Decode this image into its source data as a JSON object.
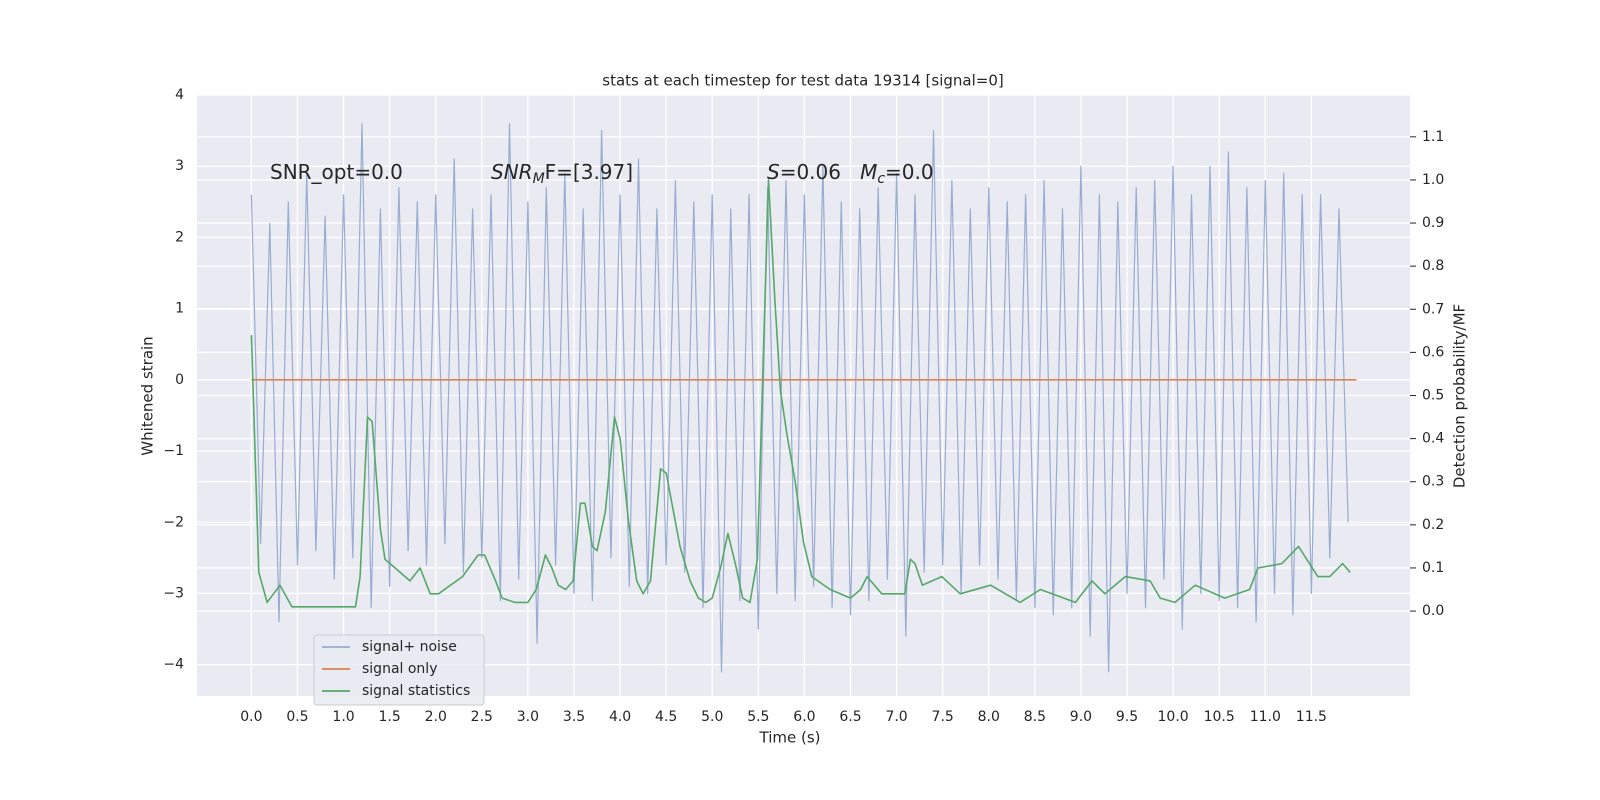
{
  "chart_data": {
    "type": "line",
    "title": "stats at each timestep for test data 19314 [signal=0]",
    "xlabel": "Time (s)",
    "ylabel": "Whitened strain",
    "y2label": "Detection probability/MF",
    "xlim": [
      -0.59,
      12.57
    ],
    "ylim": [
      -4.44,
      4
    ],
    "y2lim": [
      -0.197,
      1.197
    ],
    "xticks": [
      {
        "value": 0,
        "label": "0.0"
      },
      0.5,
      {
        "value": 1,
        "label": "1.0"
      },
      1.5,
      {
        "value": 2,
        "label": "2.0"
      },
      2.5,
      {
        "value": 3,
        "label": "3.0"
      },
      3.5,
      {
        "value": 4,
        "label": "4.0"
      },
      4.5,
      {
        "value": 5,
        "label": "5.0"
      },
      5.5,
      {
        "value": 6,
        "label": "6.0"
      },
      6.5,
      {
        "value": 7,
        "label": "7.0"
      },
      7.5,
      {
        "value": 8,
        "label": "8.0"
      },
      8.5,
      {
        "value": 9,
        "label": "9.0"
      },
      9.5,
      {
        "value": 10,
        "label": "10.0"
      },
      10.5,
      {
        "value": 11,
        "label": "11.0"
      },
      11.5
    ],
    "yticks": [
      {
        "value": -4,
        "label": "−4"
      },
      {
        "value": -3,
        "label": "−3"
      },
      {
        "value": -2,
        "label": "−2"
      },
      {
        "value": -1,
        "label": "−1"
      },
      0,
      1,
      2,
      3,
      4
    ],
    "y2ticks": [
      {
        "value": 0,
        "label": "0.0"
      },
      0.1,
      0.2,
      0.3,
      0.4,
      0.5,
      0.6,
      0.7,
      0.8,
      0.9,
      {
        "value": 1,
        "label": "1.0"
      },
      1.1
    ],
    "grid": true,
    "legend": "lower left",
    "annotations": [
      {
        "parts": [
          {
            "text": "SNR_opt=0.0"
          }
        ]
      },
      {
        "parts": [
          {
            "text": "SNR",
            "italic": true
          },
          {
            "text": "M",
            "italic": true,
            "sub": true
          },
          {
            "text": "F=[3.97]"
          }
        ]
      },
      {
        "parts": [
          {
            "text": "S",
            "italic": true
          },
          {
            "text": "=0.06   "
          },
          {
            "text": "M",
            "italic": true
          },
          {
            "text": "c",
            "italic": true,
            "sub": true
          },
          {
            "text": "=0.0"
          }
        ]
      }
    ],
    "series": [
      {
        "name": "signal+ noise",
        "color": "#99acd1",
        "x": [
          0.0,
          0.1,
          0.2,
          0.3,
          0.4,
          0.5,
          0.6,
          0.7,
          0.8,
          0.9,
          1.0,
          1.1,
          1.2,
          1.3,
          1.4,
          1.5,
          1.6,
          1.7,
          1.8,
          1.9,
          2.0,
          2.1,
          2.2,
          2.3,
          2.4,
          2.5,
          2.6,
          2.7,
          2.8,
          2.9,
          3.0,
          3.1,
          3.2,
          3.3,
          3.4,
          3.5,
          3.6,
          3.7,
          3.8,
          3.9,
          4.0,
          4.1,
          4.2,
          4.3,
          4.4,
          4.5,
          4.6,
          4.7,
          4.8,
          4.9,
          5.0,
          5.1,
          5.2,
          5.3,
          5.4,
          5.5,
          5.6,
          5.7,
          5.8,
          5.9,
          6.0,
          6.1,
          6.2,
          6.3,
          6.4,
          6.5,
          6.6,
          6.7,
          6.8,
          6.9,
          7.0,
          7.1,
          7.2,
          7.3,
          7.4,
          7.5,
          7.6,
          7.7,
          7.8,
          7.9,
          8.0,
          8.1,
          8.2,
          8.3,
          8.4,
          8.5,
          8.6,
          8.7,
          8.8,
          8.9,
          9.0,
          9.1,
          9.2,
          9.3,
          9.4,
          9.5,
          9.6,
          9.7,
          9.8,
          9.9,
          10.0,
          10.1,
          10.2,
          10.3,
          10.4,
          10.5,
          10.6,
          10.7,
          10.8,
          10.9,
          11.0,
          11.1,
          11.2,
          11.3,
          11.4,
          11.5,
          11.6,
          11.7,
          11.8,
          11.9
        ],
        "values": [
          2.6,
          -2.3,
          2.2,
          -3.4,
          2.5,
          -2.6,
          2.9,
          -2.4,
          2.3,
          -2.8,
          2.6,
          -2.5,
          3.6,
          -3.2,
          2.4,
          -2.9,
          2.7,
          -2.4,
          2.5,
          -2.6,
          2.6,
          -2.3,
          3.1,
          -2.7,
          2.4,
          -2.5,
          2.6,
          -3.1,
          3.6,
          -2.8,
          2.5,
          -3.7,
          2.7,
          -2.6,
          2.9,
          -3.0,
          2.4,
          -3.1,
          3.5,
          -2.5,
          2.6,
          -2.9,
          3.1,
          -3.0,
          2.4,
          -2.6,
          2.8,
          -2.7,
          2.5,
          -3.2,
          2.6,
          -4.1,
          2.4,
          -3.1,
          2.6,
          -3.5,
          2.7,
          -3.0,
          2.8,
          -3.1,
          2.6,
          -2.9,
          3.0,
          -3.2,
          2.5,
          -3.3,
          2.4,
          -3.1,
          2.7,
          -2.8,
          2.9,
          -3.6,
          2.6,
          -2.7,
          3.5,
          -2.6,
          2.8,
          -3.0,
          2.4,
          -2.6,
          2.7,
          -2.8,
          2.5,
          -3.1,
          2.6,
          -3.2,
          2.8,
          -3.3,
          2.4,
          -3.2,
          3.0,
          -3.6,
          2.6,
          -4.1,
          2.5,
          -3.0,
          2.7,
          -3.2,
          2.8,
          -2.8,
          3.0,
          -3.5,
          2.6,
          -3.0,
          3.0,
          -3.1,
          3.2,
          -3.2,
          2.7,
          -3.4,
          2.8,
          -3.0,
          2.9,
          -3.3,
          2.6,
          -3.0,
          2.6,
          -2.5,
          2.4,
          -2.0
        ]
      },
      {
        "name": "signal only",
        "color": "#dd8452",
        "x": [
          0.0,
          11.99
        ],
        "values": [
          0,
          0
        ]
      },
      {
        "name": "signal statistics",
        "color": "#55a868",
        "axis": "y2",
        "x": [
          0.0,
          0.08,
          0.17,
          0.31,
          0.44,
          0.64,
          0.97,
          1.13,
          1.18,
          1.26,
          1.31,
          1.4,
          1.45,
          1.56,
          1.72,
          1.83,
          1.94,
          2.03,
          2.29,
          2.46,
          2.53,
          2.65,
          2.72,
          2.86,
          3.0,
          3.09,
          3.19,
          3.26,
          3.33,
          3.41,
          3.49,
          3.57,
          3.62,
          3.7,
          3.75,
          3.84,
          3.94,
          4.0,
          4.09,
          4.18,
          4.25,
          4.33,
          4.44,
          4.5,
          4.58,
          4.65,
          4.76,
          4.85,
          4.93,
          5.0,
          5.09,
          5.17,
          5.25,
          5.33,
          5.41,
          5.49,
          5.61,
          5.68,
          5.74,
          5.81,
          5.9,
          5.99,
          6.08,
          6.28,
          6.5,
          6.61,
          6.68,
          6.84,
          7.09,
          7.15,
          7.2,
          7.28,
          7.49,
          7.69,
          8.02,
          8.34,
          8.56,
          8.94,
          9.12,
          9.26,
          9.48,
          9.75,
          9.86,
          10.02,
          10.24,
          10.56,
          10.83,
          10.92,
          11.18,
          11.36,
          11.57,
          11.7,
          11.84,
          11.92
        ],
        "values": [
          0.64,
          0.09,
          0.02,
          0.06,
          0.01,
          0.01,
          0.01,
          0.01,
          0.08,
          0.45,
          0.44,
          0.19,
          0.12,
          0.1,
          0.07,
          0.1,
          0.04,
          0.04,
          0.08,
          0.13,
          0.13,
          0.07,
          0.03,
          0.02,
          0.02,
          0.05,
          0.13,
          0.1,
          0.06,
          0.05,
          0.07,
          0.25,
          0.25,
          0.15,
          0.14,
          0.23,
          0.45,
          0.4,
          0.21,
          0.07,
          0.04,
          0.07,
          0.33,
          0.32,
          0.23,
          0.15,
          0.07,
          0.03,
          0.02,
          0.03,
          0.1,
          0.18,
          0.11,
          0.03,
          0.02,
          0.12,
          1.0,
          0.72,
          0.51,
          0.41,
          0.3,
          0.16,
          0.08,
          0.05,
          0.03,
          0.05,
          0.08,
          0.04,
          0.04,
          0.12,
          0.11,
          0.06,
          0.08,
          0.04,
          0.06,
          0.02,
          0.05,
          0.02,
          0.07,
          0.04,
          0.08,
          0.07,
          0.03,
          0.02,
          0.06,
          0.03,
          0.05,
          0.1,
          0.11,
          0.15,
          0.08,
          0.08,
          0.11,
          0.09
        ]
      }
    ]
  }
}
